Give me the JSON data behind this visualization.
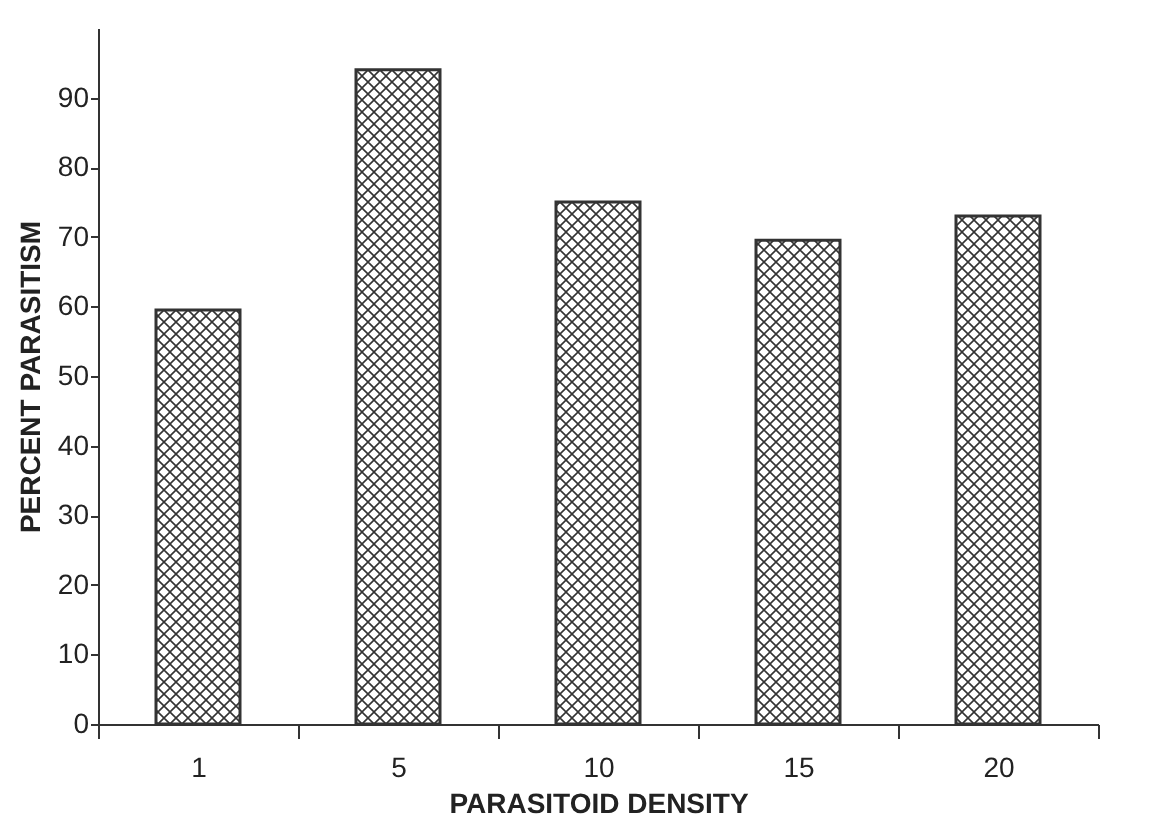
{
  "chart_data": {
    "type": "bar",
    "xlabel": "PARASITOID DENSITY",
    "ylabel": "PERCENT PARASITISM",
    "categories": [
      "1",
      "5",
      "10",
      "15",
      "20"
    ],
    "values": [
      59.5,
      94,
      75,
      69.5,
      73
    ],
    "color": "#333333",
    "ylim": [
      0,
      100
    ],
    "yticks": [
      0,
      10,
      20,
      30,
      40,
      50,
      60,
      70,
      80,
      90
    ],
    "grid": false
  }
}
